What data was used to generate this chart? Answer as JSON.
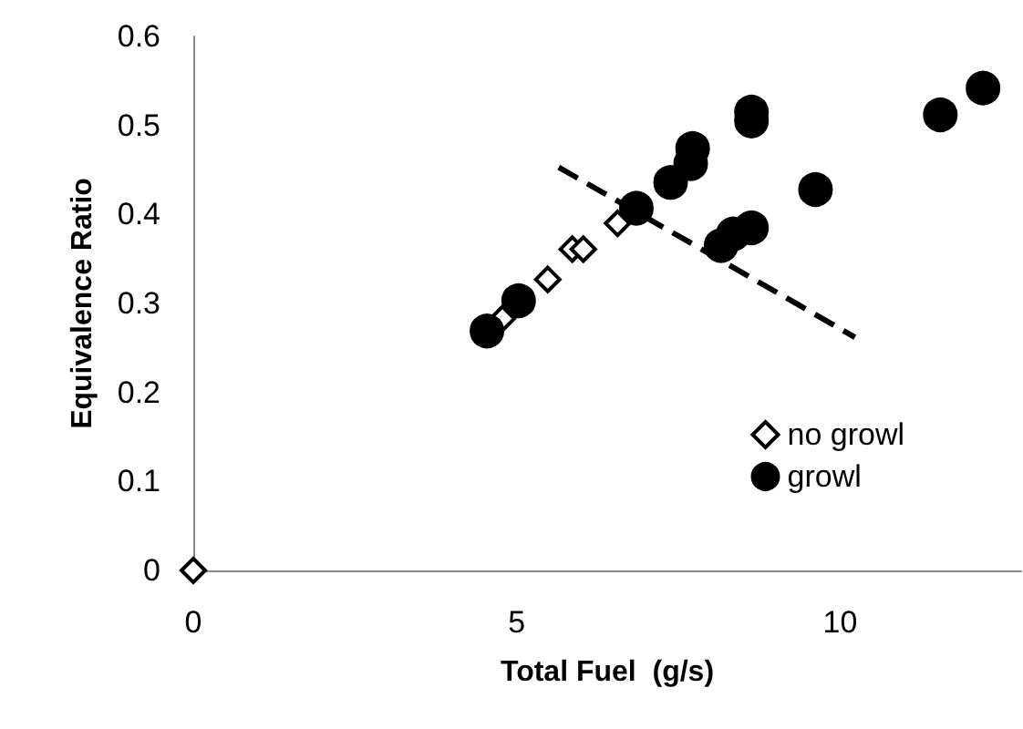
{
  "chart_data": {
    "type": "scatter",
    "xlabel": "Total Fuel  (g/s)",
    "ylabel": "Equivalence Ratio",
    "xlim": [
      0,
      12.8
    ],
    "xticks": [
      0,
      5,
      10
    ],
    "ylim": [
      0,
      0.6
    ],
    "yticks": [
      0,
      0.1,
      0.2,
      0.3,
      0.4,
      0.5,
      0.6
    ],
    "grid": false,
    "legend": "bottom right",
    "series": [
      {
        "name": "no growl",
        "color": "#000000",
        "marker": "diamond",
        "x": [
          0,
          4.78,
          5.48,
          5.86,
          6.03,
          6.56
        ],
        "values": [
          0,
          0.283,
          0.327,
          0.361,
          0.361,
          0.39
        ]
      },
      {
        "name": "growl",
        "color": "#000000",
        "marker": "circle",
        "x": [
          4.54,
          5.03,
          6.85,
          7.38,
          7.69,
          7.72,
          8.63,
          8.63,
          8.16,
          8.35,
          8.63,
          9.62,
          11.55,
          12.21
        ],
        "values": [
          0.269,
          0.303,
          0.407,
          0.436,
          0.457,
          0.474,
          0.515,
          0.505,
          0.365,
          0.378,
          0.385,
          0.428,
          0.512,
          0.542
        ]
      },
      {
        "type": "line",
        "color": "#000000",
        "marker": "none",
        "line_style": "dashed",
        "x": [
          5.65,
          10.23
        ],
        "values": [
          0.453,
          0.262
        ]
      }
    ]
  }
}
